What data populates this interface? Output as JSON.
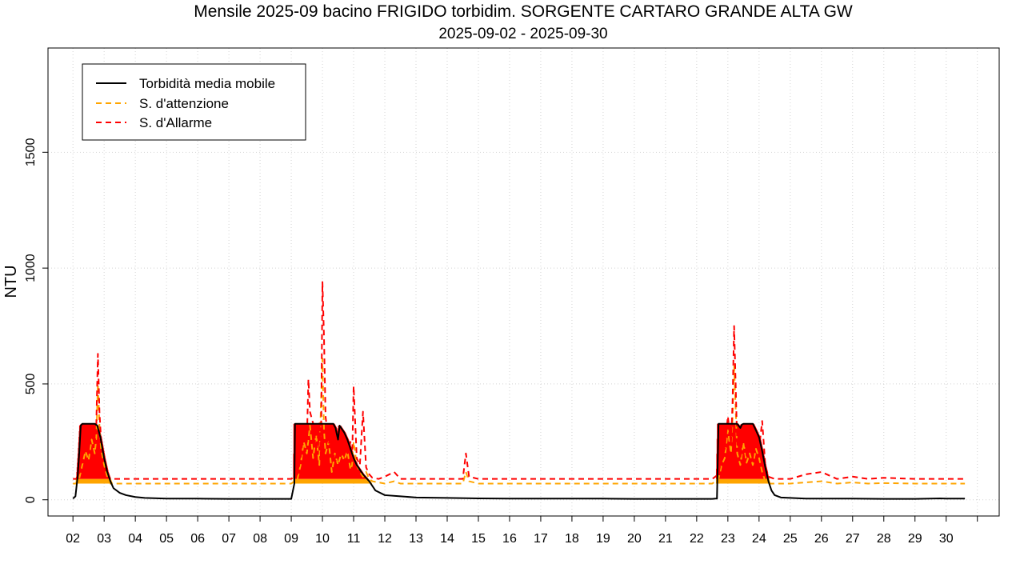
{
  "chart_data": {
    "type": "line",
    "title": "Mensile 2025-09 bacino FRIGIDO torbidim. SORGENTE CARTARO GRANDE ALTA GW",
    "subtitle": "2025-09-02 - 2025-09-30",
    "xlabel": "",
    "ylabel": "NTU",
    "xlim": [
      1.2,
      31.7
    ],
    "ylim": [
      -70,
      1950
    ],
    "x_ticks": [
      2,
      3,
      4,
      5,
      6,
      7,
      8,
      9,
      10,
      11,
      12,
      13,
      14,
      15,
      16,
      17,
      18,
      19,
      20,
      21,
      22,
      23,
      24,
      25,
      26,
      27,
      28,
      29,
      30
    ],
    "x_tick_labels": [
      "02",
      "03",
      "04",
      "05",
      "06",
      "07",
      "08",
      "09",
      "10",
      "11",
      "12",
      "13",
      "14",
      "15",
      "16",
      "17",
      "18",
      "19",
      "20",
      "21",
      "22",
      "23",
      "24",
      "25",
      "26",
      "27",
      "28",
      "29",
      "30"
    ],
    "y_ticks": [
      0,
      500,
      1000,
      1500
    ],
    "y_tick_labels": [
      "0",
      "500",
      "1000",
      "1500"
    ],
    "grid": true,
    "legend_position": "top-left",
    "thresholds": {
      "attenzione": 70,
      "allarme": 90
    },
    "fill_bands": {
      "warning_color": "#ffa500",
      "alarm_color": "#ff0000"
    },
    "series": [
      {
        "name": "Torbidità media mobile",
        "color": "#000000",
        "style": "solid",
        "x": [
          2.0,
          2.08,
          2.15,
          2.2,
          2.25,
          2.3,
          2.5,
          2.6,
          2.7,
          2.78,
          2.88,
          3.0,
          3.1,
          3.2,
          3.3,
          3.5,
          3.7,
          4.0,
          4.3,
          5.0,
          6.0,
          7.0,
          8.0,
          9.0,
          9.1,
          9.12,
          9.15,
          9.2,
          9.4,
          9.6,
          9.8,
          10.0,
          10.2,
          10.35,
          10.42,
          10.45,
          10.5,
          10.55,
          10.6,
          10.7,
          10.8,
          10.9,
          11.0,
          11.1,
          11.2,
          11.3,
          11.5,
          11.7,
          12.0,
          12.5,
          13.0,
          14.0,
          15.0,
          16.0,
          17.0,
          18.0,
          19.0,
          20.0,
          21.0,
          22.0,
          22.5,
          22.6,
          22.65,
          22.7,
          22.8,
          23.0,
          23.2,
          23.3,
          23.4,
          23.45,
          23.5,
          23.6,
          23.8,
          23.9,
          24.0,
          24.1,
          24.2,
          24.3,
          24.4,
          24.5,
          24.7,
          25.0,
          25.5,
          26.0,
          27.0,
          28.0,
          29.0,
          29.8,
          30.0,
          30.6
        ],
        "y": [
          5,
          15,
          100,
          200,
          320,
          328,
          328,
          328,
          328,
          320,
          270,
          180,
          120,
          80,
          50,
          30,
          20,
          12,
          8,
          5,
          5,
          4,
          4,
          4,
          70,
          328,
          328,
          328,
          328,
          328,
          328,
          328,
          328,
          328,
          310,
          290,
          260,
          320,
          310,
          290,
          260,
          220,
          180,
          150,
          130,
          110,
          80,
          40,
          20,
          15,
          10,
          8,
          6,
          5,
          5,
          5,
          5,
          4,
          4,
          4,
          4,
          5,
          5,
          328,
          328,
          328,
          328,
          328,
          310,
          325,
          328,
          328,
          328,
          300,
          270,
          210,
          140,
          80,
          40,
          20,
          10,
          8,
          5,
          5,
          5,
          4,
          4,
          6,
          5,
          5
        ]
      },
      {
        "name": "S. d'attenzione",
        "color": "#ffa500",
        "style": "dashed",
        "x": [
          2.0,
          2.1,
          2.2,
          2.3,
          2.4,
          2.5,
          2.6,
          2.7,
          2.75,
          2.8,
          2.85,
          2.9,
          3.0,
          3.1,
          3.2,
          3.3,
          5.0,
          9.0,
          9.2,
          9.3,
          9.4,
          9.5,
          9.6,
          9.7,
          9.8,
          9.9,
          9.95,
          10.0,
          10.05,
          10.1,
          10.2,
          10.3,
          10.4,
          10.5,
          10.6,
          10.7,
          10.8,
          10.9,
          10.95,
          11.0,
          11.1,
          11.2,
          11.3,
          11.4,
          11.5,
          11.6,
          11.8,
          12.0,
          12.3,
          12.5,
          13.0,
          14.0,
          14.5,
          14.6,
          14.7,
          15.0,
          20.0,
          22.5,
          22.7,
          22.8,
          22.9,
          23.0,
          23.1,
          23.15,
          23.2,
          23.3,
          23.4,
          23.5,
          23.6,
          23.7,
          23.8,
          23.9,
          24.0,
          24.1,
          24.2,
          24.3,
          24.5,
          25.0,
          25.5,
          26.0,
          26.5,
          27.0,
          27.5,
          28.0,
          29.0,
          30.0,
          30.6
        ],
        "y": [
          70,
          70,
          90,
          150,
          210,
          170,
          260,
          200,
          270,
          500,
          320,
          220,
          150,
          100,
          70,
          70,
          70,
          70,
          90,
          150,
          250,
          200,
          320,
          180,
          280,
          150,
          400,
          610,
          300,
          200,
          250,
          120,
          200,
          150,
          200,
          170,
          210,
          130,
          150,
          250,
          150,
          120,
          100,
          120,
          90,
          80,
          75,
          70,
          80,
          70,
          70,
          70,
          70,
          120,
          80,
          70,
          70,
          70,
          90,
          150,
          180,
          300,
          200,
          350,
          580,
          200,
          150,
          250,
          160,
          200,
          150,
          220,
          180,
          120,
          80,
          70,
          70,
          70,
          75,
          80,
          70,
          75,
          70,
          72,
          70,
          70,
          70
        ]
      },
      {
        "name": "S. d'Allarme",
        "color": "#ff0000",
        "style": "dashed",
        "x": [
          2.0,
          2.1,
          2.2,
          2.3,
          2.4,
          2.5,
          2.6,
          2.7,
          2.75,
          2.8,
          2.85,
          2.9,
          3.0,
          3.1,
          3.2,
          3.3,
          5.0,
          9.0,
          9.2,
          9.3,
          9.4,
          9.5,
          9.55,
          9.6,
          9.7,
          9.8,
          9.9,
          9.95,
          10.0,
          10.05,
          10.1,
          10.2,
          10.3,
          10.4,
          10.5,
          10.6,
          10.7,
          10.8,
          10.9,
          10.95,
          11.0,
          11.1,
          11.2,
          11.3,
          11.4,
          11.5,
          11.6,
          11.8,
          12.0,
          12.3,
          12.5,
          13.0,
          14.0,
          14.5,
          14.6,
          14.7,
          15.0,
          20.0,
          22.5,
          22.7,
          22.8,
          22.9,
          23.0,
          23.1,
          23.15,
          23.2,
          23.3,
          23.4,
          23.5,
          23.6,
          23.7,
          23.8,
          23.9,
          24.0,
          24.1,
          24.2,
          24.3,
          24.5,
          25.0,
          25.5,
          26.0,
          26.5,
          27.0,
          27.5,
          28.0,
          29.0,
          30.0,
          30.6
        ],
        "y": [
          90,
          90,
          110,
          180,
          260,
          210,
          310,
          240,
          330,
          630,
          380,
          260,
          180,
          120,
          90,
          90,
          90,
          90,
          110,
          180,
          300,
          250,
          520,
          380,
          330,
          200,
          340,
          180,
          940,
          700,
          360,
          240,
          300,
          150,
          240,
          180,
          240,
          200,
          250,
          160,
          490,
          180,
          150,
          380,
          140,
          110,
          95,
          90,
          100,
          120,
          90,
          90,
          90,
          90,
          200,
          100,
          90,
          90,
          90,
          110,
          180,
          220,
          360,
          240,
          420,
          750,
          240,
          180,
          300,
          190,
          240,
          180,
          260,
          220,
          340,
          150,
          100,
          90,
          90,
          110,
          120,
          90,
          100,
          90,
          95,
          90,
          90,
          90
        ]
      }
    ]
  }
}
